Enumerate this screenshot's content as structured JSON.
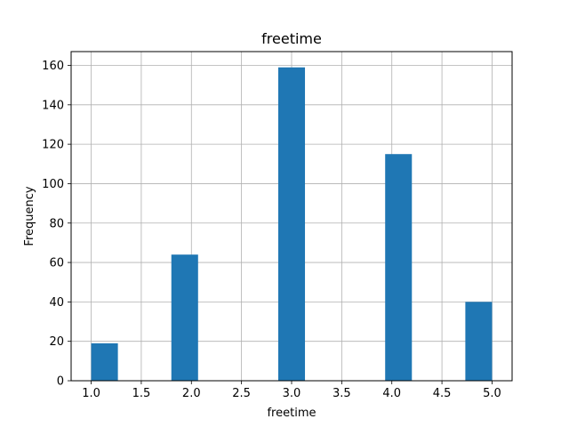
{
  "chart_data": {
    "type": "bar",
    "title": "freetime",
    "xlabel": "freetime",
    "ylabel": "Frequency",
    "bins": [
      {
        "x0": 1.0,
        "x1": 1.2667,
        "value": 19
      },
      {
        "x0": 1.2667,
        "x1": 1.5333,
        "value": 0
      },
      {
        "x0": 1.5333,
        "x1": 1.8,
        "value": 0
      },
      {
        "x0": 1.8,
        "x1": 2.0667,
        "value": 64
      },
      {
        "x0": 2.0667,
        "x1": 2.3333,
        "value": 0
      },
      {
        "x0": 2.3333,
        "x1": 2.6,
        "value": 0
      },
      {
        "x0": 2.6,
        "x1": 2.8667,
        "value": 0
      },
      {
        "x0": 2.8667,
        "x1": 3.1333,
        "value": 159
      },
      {
        "x0": 3.1333,
        "x1": 3.4,
        "value": 0
      },
      {
        "x0": 3.4,
        "x1": 3.6667,
        "value": 0
      },
      {
        "x0": 3.6667,
        "x1": 3.9333,
        "value": 0
      },
      {
        "x0": 3.9333,
        "x1": 4.2,
        "value": 115
      },
      {
        "x0": 4.2,
        "x1": 4.4667,
        "value": 0
      },
      {
        "x0": 4.4667,
        "x1": 4.7333,
        "value": 0
      },
      {
        "x0": 4.7333,
        "x1": 5.0,
        "value": 40
      }
    ],
    "xlim": [
      0.8,
      5.2
    ],
    "ylim": [
      0,
      167
    ],
    "xticks": [
      "1.0",
      "1.5",
      "2.0",
      "2.5",
      "3.0",
      "3.5",
      "4.0",
      "4.5",
      "5.0"
    ],
    "yticks": [
      "0",
      "20",
      "40",
      "60",
      "80",
      "100",
      "120",
      "140",
      "160"
    ],
    "grid": true,
    "bar_color": "#1f77b4",
    "grid_color": "#b0b0b0"
  }
}
